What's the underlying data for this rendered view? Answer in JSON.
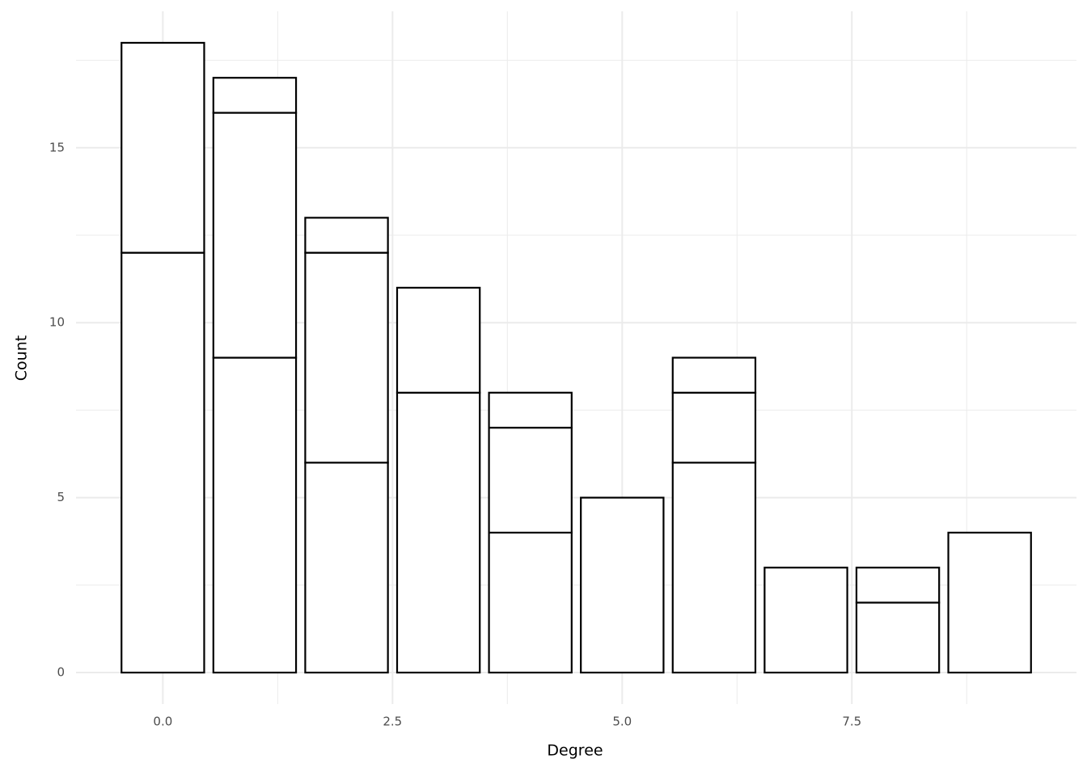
{
  "chart_data": {
    "type": "bar",
    "stacked": true,
    "x": [
      0,
      1,
      2,
      3,
      4,
      5,
      6,
      7,
      8,
      9
    ],
    "series": [
      {
        "values": [
          12,
          9,
          6,
          8,
          4,
          5,
          6,
          3,
          2,
          4
        ]
      },
      {
        "values": [
          6,
          7,
          6,
          3,
          3,
          null,
          2,
          null,
          1,
          null
        ]
      },
      {
        "values": [
          null,
          1,
          1,
          null,
          1,
          null,
          1,
          null,
          null,
          null
        ]
      }
    ],
    "color": "#ffffff",
    "edgecolor": "#000000",
    "xlabel": "Degree",
    "ylabel": "Count",
    "xlim": [
      -0.945,
      9.945
    ],
    "xticks": [
      {
        "value": 0,
        "label": "0.0"
      },
      2.5,
      {
        "value": 5,
        "label": "5.0"
      },
      7.5
    ],
    "ylim": [
      -0.9,
      18.9
    ],
    "yticks": [
      0,
      5,
      10,
      15
    ],
    "grid": true
  }
}
